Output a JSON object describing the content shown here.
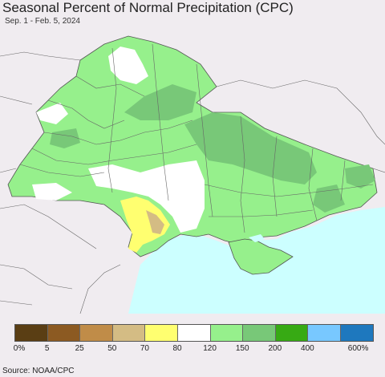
{
  "title": "Seasonal Percent of Normal Precipitation (CPC)",
  "subtitle": "Sep. 1 - Feb. 5, 2024",
  "source": "Source: NOAA/CPC",
  "legend": {
    "colors": [
      "#5a3e14",
      "#8c5a22",
      "#c08c48",
      "#d4bc84",
      "#ffff70",
      "#ffffff",
      "#96f08c",
      "#78c878",
      "#37aa14",
      "#78c8ff",
      "#1e78be"
    ],
    "labels": [
      "0%",
      "5",
      "25",
      "50",
      "70",
      "80",
      "120",
      "150",
      "200",
      "400",
      "600%"
    ]
  },
  "map_colors": {
    "background": "#f0ecf0",
    "sea": "#ccffff",
    "light_green": "#96f08c",
    "mid_green": "#78c878",
    "white": "#ffffff",
    "yellow": "#ffff70",
    "tan": "#d4bc84",
    "border": "#555555"
  }
}
